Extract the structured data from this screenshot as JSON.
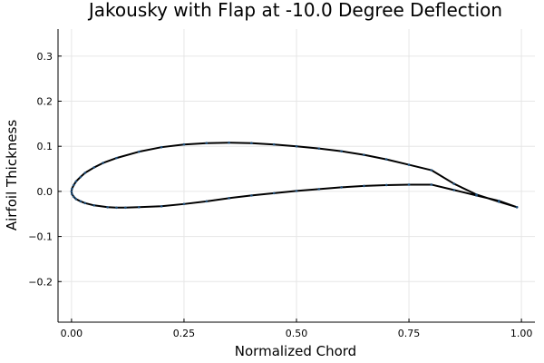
{
  "chart_data": {
    "type": "scatter",
    "title": "Jakousky with Flap at -10.0 Degree Deflection",
    "xlabel": "Normalized Chord",
    "ylabel": "Airfoil Thickness",
    "xlim": [
      -0.03,
      1.03
    ],
    "ylim": [
      -0.29,
      0.36
    ],
    "xticks": [
      0.0,
      0.25,
      0.5,
      0.75,
      1.0
    ],
    "xtick_labels": [
      "0.00",
      "0.25",
      "0.50",
      "0.75",
      "1.00"
    ],
    "yticks": [
      -0.2,
      -0.1,
      0.0,
      0.1,
      0.2,
      0.3
    ],
    "ytick_labels": [
      "−0.2",
      "−0.1",
      "0.0",
      "0.1",
      "0.2",
      "0.3"
    ],
    "grid": true,
    "legend": false,
    "line_color": "#000000",
    "marker_color": "#1f4e79",
    "series": [
      {
        "upper": [
          [
            0.99,
            -0.035
          ],
          [
            0.95,
            -0.023
          ],
          [
            0.9,
            -0.007
          ],
          [
            0.85,
            0.017
          ],
          [
            0.8,
            0.047
          ],
          [
            0.75,
            0.059
          ],
          [
            0.7,
            0.071
          ],
          [
            0.65,
            0.081
          ],
          [
            0.6,
            0.089
          ],
          [
            0.55,
            0.095
          ],
          [
            0.5,
            0.1
          ],
          [
            0.45,
            0.104
          ],
          [
            0.4,
            0.107
          ],
          [
            0.35,
            0.108
          ],
          [
            0.3,
            0.107
          ],
          [
            0.25,
            0.104
          ],
          [
            0.2,
            0.098
          ],
          [
            0.15,
            0.088
          ],
          [
            0.1,
            0.074
          ],
          [
            0.07,
            0.063
          ],
          [
            0.05,
            0.053
          ],
          [
            0.03,
            0.041
          ],
          [
            0.02,
            0.032
          ],
          [
            0.01,
            0.022
          ],
          [
            0.005,
            0.014
          ],
          [
            0.001,
            0.006
          ],
          [
            0.0,
            0.0
          ]
        ],
        "lower": [
          [
            0.0,
            0.0
          ],
          [
            0.001,
            -0.006
          ],
          [
            0.005,
            -0.012
          ],
          [
            0.01,
            -0.017
          ],
          [
            0.02,
            -0.022
          ],
          [
            0.03,
            -0.026
          ],
          [
            0.05,
            -0.031
          ],
          [
            0.08,
            -0.035
          ],
          [
            0.1,
            -0.036
          ],
          [
            0.12,
            -0.036
          ],
          [
            0.15,
            -0.035
          ],
          [
            0.2,
            -0.033
          ],
          [
            0.25,
            -0.028
          ],
          [
            0.3,
            -0.022
          ],
          [
            0.35,
            -0.015
          ],
          [
            0.4,
            -0.009
          ],
          [
            0.45,
            -0.004
          ],
          [
            0.5,
            0.001
          ],
          [
            0.55,
            0.005
          ],
          [
            0.6,
            0.009
          ],
          [
            0.65,
            0.012
          ],
          [
            0.7,
            0.014
          ],
          [
            0.75,
            0.015
          ],
          [
            0.8,
            0.015
          ],
          [
            0.85,
            0.003
          ],
          [
            0.9,
            -0.009
          ],
          [
            0.95,
            -0.021
          ],
          [
            0.99,
            -0.035
          ]
        ]
      }
    ]
  }
}
